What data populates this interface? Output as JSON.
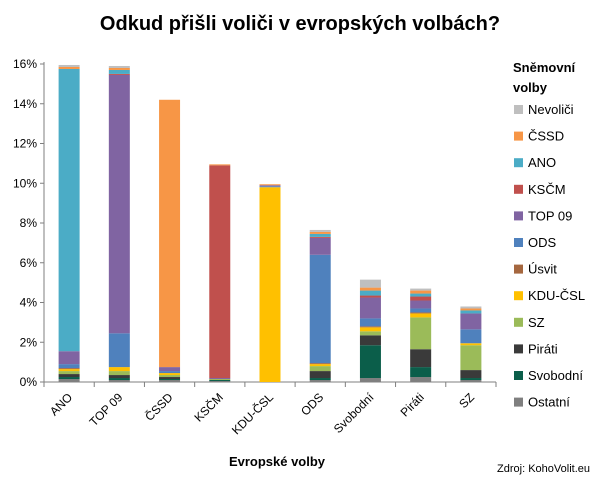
{
  "chart_data": {
    "type": "bar",
    "stacked": true,
    "title": "Odkud přišli voliči v evropských volbách?",
    "xlabel": "Evropské volby",
    "ylabel": "",
    "ylim": [
      0,
      16
    ],
    "y_ticks": [
      "0%",
      "2%",
      "4%",
      "6%",
      "8%",
      "10%",
      "12%",
      "14%",
      "16%"
    ],
    "grid": false,
    "legend_position": "right",
    "legend_title": "Sněmovní volby",
    "source_text": "Zdroj: KohoVolit.eu",
    "categories": [
      "ANO",
      "TOP 09",
      "ČSSD",
      "KSČM",
      "KDU-ČSL",
      "ODS",
      "Svobodní",
      "Piráti",
      "SZ"
    ],
    "series": [
      {
        "name": "Ostatní",
        "color": "#7f7f7f",
        "values": [
          0.15,
          0.1,
          0.1,
          0.05,
          0.0,
          0.1,
          0.2,
          0.25,
          0.1
        ]
      },
      {
        "name": "Svobodní",
        "color": "#0b5e4a",
        "values": [
          0.1,
          0.1,
          0.05,
          0.05,
          0.0,
          0.1,
          1.65,
          0.5,
          0.1
        ]
      },
      {
        "name": "Piráti",
        "color": "#3a3a3a",
        "values": [
          0.15,
          0.15,
          0.1,
          0.0,
          0.0,
          0.35,
          0.5,
          0.9,
          0.4
        ]
      },
      {
        "name": "SZ",
        "color": "#9bbb59",
        "values": [
          0.15,
          0.2,
          0.1,
          0.05,
          0.0,
          0.25,
          0.2,
          1.6,
          1.25
        ]
      },
      {
        "name": "KDU-ČSL",
        "color": "#ffc000",
        "values": [
          0.1,
          0.2,
          0.1,
          0.0,
          9.8,
          0.1,
          0.2,
          0.2,
          0.1
        ]
      },
      {
        "name": "Úsvit",
        "color": "#a5673f",
        "values": [
          0.05,
          0.0,
          0.0,
          0.0,
          0.0,
          0.05,
          0.05,
          0.05,
          0.0
        ]
      },
      {
        "name": "ODS",
        "color": "#4f81bd",
        "values": [
          0.2,
          1.7,
          0.1,
          0.0,
          0.05,
          5.45,
          0.4,
          0.2,
          0.7
        ]
      },
      {
        "name": "TOP 09",
        "color": "#8064a2",
        "values": [
          0.65,
          13.0,
          0.2,
          0.05,
          0.05,
          0.85,
          1.05,
          0.4,
          0.8
        ]
      },
      {
        "name": "KSČM",
        "color": "#c0504d",
        "values": [
          0.0,
          0.05,
          0.0,
          10.7,
          0.0,
          0.05,
          0.1,
          0.2,
          0.0
        ]
      },
      {
        "name": "ANO",
        "color": "#4bacc6",
        "values": [
          14.2,
          0.2,
          0.0,
          0.0,
          0.0,
          0.15,
          0.25,
          0.15,
          0.15
        ]
      },
      {
        "name": "ČSSD",
        "color": "#f79646",
        "values": [
          0.1,
          0.1,
          13.45,
          0.05,
          0.05,
          0.1,
          0.15,
          0.15,
          0.1
        ]
      },
      {
        "name": "Nevoliči",
        "color": "#bfbfbf",
        "values": [
          0.1,
          0.1,
          0.0,
          0.0,
          0.0,
          0.1,
          0.4,
          0.1,
          0.1
        ]
      }
    ],
    "legend_order": [
      "Nevoliči",
      "ČSSD",
      "ANO",
      "KSČM",
      "TOP 09",
      "ODS",
      "Úsvit",
      "KDU-ČSL",
      "SZ",
      "Piráti",
      "Svobodní",
      "Ostatní"
    ]
  }
}
